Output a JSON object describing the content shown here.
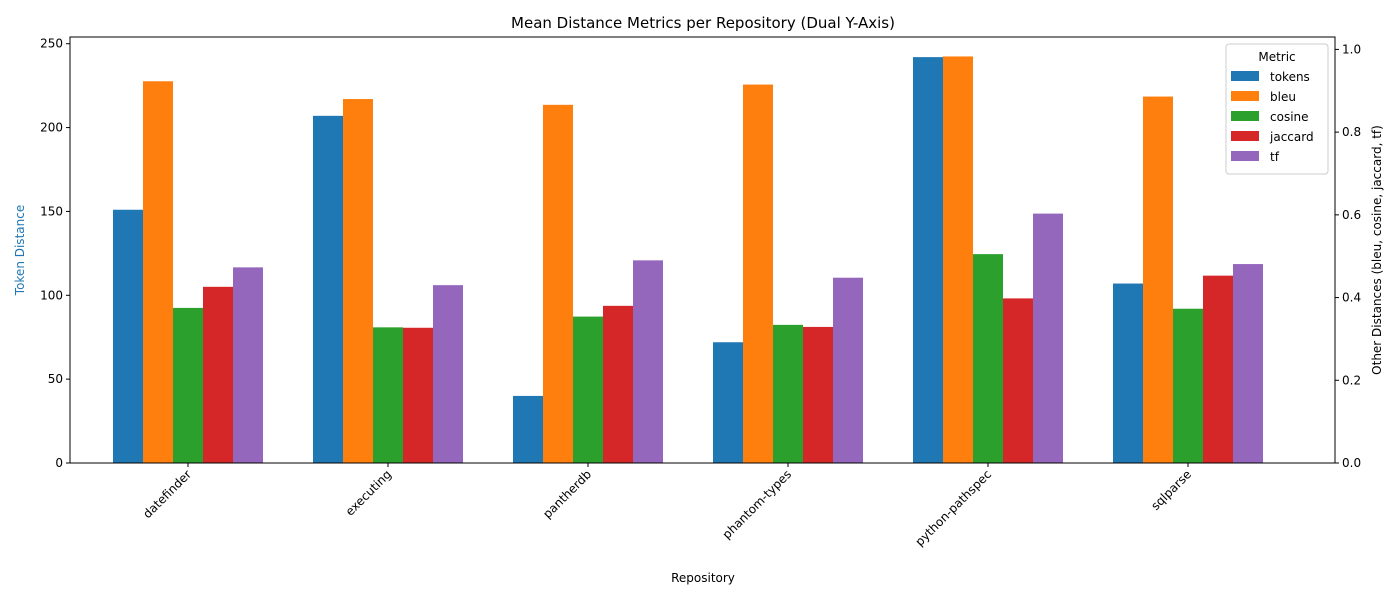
{
  "chart_data": {
    "type": "bar",
    "title": "Mean Distance Metrics per Repository (Dual Y-Axis)",
    "xlabel": "Repository",
    "ylabel_left": "Token Distance",
    "ylabel_right": "Other Distances (bleu, cosine, jaccard, tf)",
    "ylim_left": [
      0,
      254
    ],
    "ylim_right": [
      0,
      1.03
    ],
    "yticks_left": [
      "0",
      "50",
      "100",
      "150",
      "200",
      "250"
    ],
    "yticks_right": [
      "0.0",
      "0.2",
      "0.4",
      "0.6",
      "0.8",
      "1.0"
    ],
    "categories": [
      "datefinder",
      "executing",
      "pantherdb",
      "phantom-types",
      "python-pathspec",
      "sqlparse"
    ],
    "series": [
      {
        "name": "tokens",
        "axis": "left",
        "color": "#1f77b4",
        "values": [
          151,
          207,
          40,
          72,
          242,
          107
        ]
      },
      {
        "name": "bleu",
        "axis": "right",
        "color": "#ff7f0e",
        "values": [
          0.923,
          0.88,
          0.866,
          0.915,
          0.983,
          0.886
        ]
      },
      {
        "name": "cosine",
        "axis": "right",
        "color": "#2ca02c",
        "values": [
          0.375,
          0.328,
          0.354,
          0.334,
          0.505,
          0.373
        ]
      },
      {
        "name": "jaccard",
        "axis": "right",
        "color": "#d62728",
        "values": [
          0.426,
          0.327,
          0.38,
          0.329,
          0.398,
          0.453
        ]
      },
      {
        "name": "tf",
        "axis": "right",
        "color": "#9467bd",
        "values": [
          0.473,
          0.43,
          0.49,
          0.448,
          0.603,
          0.481
        ]
      }
    ],
    "legend": {
      "title": "Metric",
      "placement": "top-right"
    },
    "grid": false
  },
  "colors": {
    "left_axis_label": "#1f77b4",
    "axis": "#000000"
  }
}
